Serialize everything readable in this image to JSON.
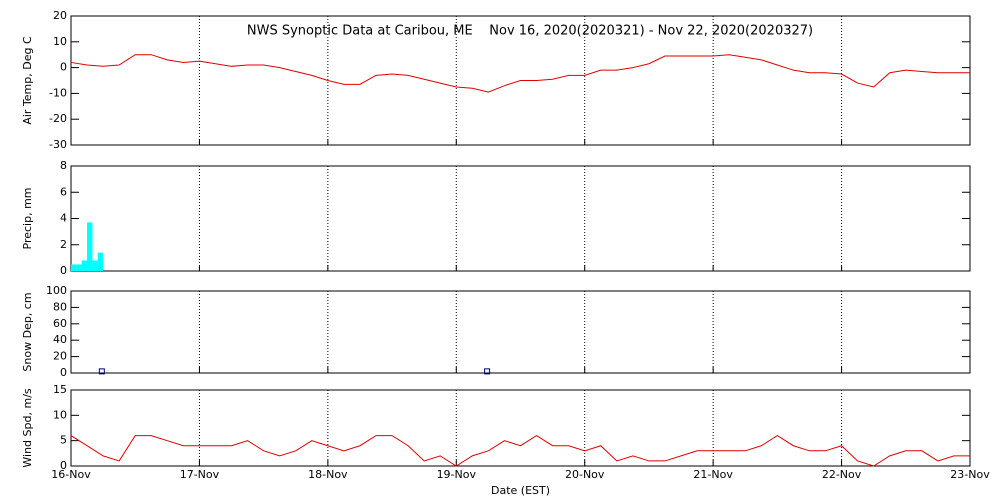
{
  "chart_data": [
    {
      "type": "line",
      "title": "NWS Synoptic Data at Caribou, ME    Nov 16, 2020(2020321) - Nov 22, 2020(2020327)",
      "ylabel": "Air Temp, Deg C",
      "xlim": [
        0,
        7
      ],
      "xticks": [
        0,
        1,
        2,
        3,
        4,
        5,
        6,
        7
      ],
      "ylim": [
        -30,
        20
      ],
      "yticks": [
        -30,
        -20,
        -10,
        0,
        10,
        20
      ],
      "grid": true,
      "series": [
        {
          "color": "#e00000",
          "x": [
            0,
            0.125,
            0.25,
            0.375,
            0.5,
            0.625,
            0.75,
            0.875,
            1,
            1.125,
            1.25,
            1.375,
            1.5,
            1.625,
            1.75,
            1.875,
            2,
            2.125,
            2.25,
            2.375,
            2.5,
            2.625,
            2.75,
            2.875,
            3,
            3.125,
            3.25,
            3.375,
            3.5,
            3.625,
            3.75,
            3.875,
            4,
            4.125,
            4.25,
            4.375,
            4.5,
            4.625,
            4.75,
            4.875,
            5,
            5.125,
            5.25,
            5.375,
            5.5,
            5.625,
            5.75,
            5.875,
            6,
            6.125,
            6.25,
            6.375,
            6.5,
            6.625,
            6.75,
            6.875,
            7
          ],
          "values": [
            2,
            1,
            0.5,
            1,
            5,
            5,
            3,
            2,
            2.5,
            1.5,
            0.5,
            1,
            1,
            0,
            -1.5,
            -3,
            -5,
            -6.5,
            -6.5,
            -3,
            -2.5,
            -3,
            -4.5,
            -6,
            -7.5,
            -8,
            -9.5,
            -7,
            -5,
            -5,
            -4.5,
            -3,
            -3,
            -1,
            -1,
            0,
            1.5,
            4.5,
            4.5,
            4.5,
            4.5,
            5,
            4,
            3,
            1,
            -1,
            -2,
            -2,
            -2.5,
            -6,
            -7.5,
            -2,
            -1,
            -1.5,
            -2,
            -2,
            -2
          ]
        }
      ]
    },
    {
      "type": "histogram",
      "ylabel": "Precip, mm",
      "xlim": [
        0,
        7
      ],
      "xticks": [
        0,
        1,
        2,
        3,
        4,
        5,
        6,
        7
      ],
      "ylim": [
        0,
        8
      ],
      "yticks": [
        0,
        2,
        4,
        6,
        8
      ],
      "grid": true,
      "color": "#00ffff",
      "bins": [
        0,
        0.042,
        0.083,
        0.125,
        0.167,
        0.208,
        0.25
      ],
      "values": [
        0.5,
        0.5,
        0.8,
        3.7,
        0.8,
        1.4
      ]
    },
    {
      "type": "scatter",
      "ylabel": "Snow Dep, cm",
      "xlim": [
        0,
        7
      ],
      "xticks": [
        0,
        1,
        2,
        3,
        4,
        5,
        6,
        7
      ],
      "ylim": [
        0,
        100
      ],
      "yticks": [
        0,
        20,
        40,
        60,
        80,
        100
      ],
      "grid": true,
      "color": "#000080",
      "x": [
        0.24,
        3.24
      ],
      "values": [
        2,
        2
      ]
    },
    {
      "type": "line",
      "ylabel": "Wind Spd, m/s",
      "xlabel": "Date (EST)",
      "xlim": [
        0,
        7
      ],
      "xticks": [
        {
          "value": 0,
          "label": "16-Nov"
        },
        {
          "value": 1,
          "label": "17-Nov"
        },
        {
          "value": 2,
          "label": "18-Nov"
        },
        {
          "value": 3,
          "label": "19-Nov"
        },
        {
          "value": 4,
          "label": "20-Nov"
        },
        {
          "value": 5,
          "label": "21-Nov"
        },
        {
          "value": 6,
          "label": "22-Nov"
        },
        {
          "value": 7,
          "label": "23-Nov"
        }
      ],
      "ylim": [
        0,
        15
      ],
      "yticks": [
        0,
        5,
        10,
        15
      ],
      "grid": true,
      "series": [
        {
          "color": "#e00000",
          "x": [
            0,
            0.125,
            0.25,
            0.375,
            0.5,
            0.625,
            0.75,
            0.875,
            1,
            1.125,
            1.25,
            1.375,
            1.5,
            1.625,
            1.75,
            1.875,
            2,
            2.125,
            2.25,
            2.375,
            2.5,
            2.625,
            2.75,
            2.875,
            3,
            3.125,
            3.25,
            3.375,
            3.5,
            3.625,
            3.75,
            3.875,
            4,
            4.125,
            4.25,
            4.375,
            4.5,
            4.625,
            4.75,
            4.875,
            5,
            5.125,
            5.25,
            5.375,
            5.5,
            5.625,
            5.75,
            5.875,
            6,
            6.125,
            6.25,
            6.375,
            6.5,
            6.625,
            6.75,
            6.875,
            7
          ],
          "values": [
            6,
            4,
            2,
            1,
            6,
            6,
            5,
            4,
            4,
            4,
            4,
            5,
            3,
            2,
            3,
            5,
            4,
            3,
            4,
            6,
            6,
            4,
            1,
            2,
            0,
            2,
            3,
            5,
            4,
            6,
            4,
            4,
            3,
            4,
            1,
            2,
            1,
            1,
            2,
            3,
            3,
            3,
            3,
            4,
            6,
            4,
            3,
            3,
            4,
            1,
            0,
            2,
            3,
            3,
            1,
            2,
            2
          ]
        }
      ]
    }
  ]
}
